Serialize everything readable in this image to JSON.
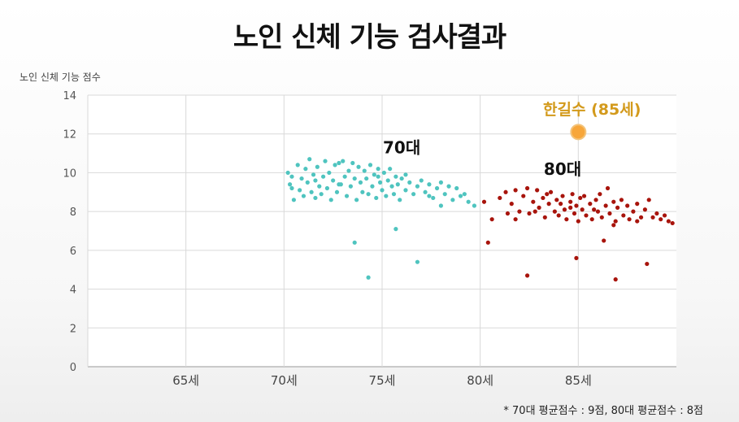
{
  "title": "노인 신체 기능 검사결과",
  "footnote": "* 70대 평균점수 : 9점,  80대 평균점수 : 8점",
  "chart_data": {
    "type": "scatter",
    "ylabel": "노인 신체 기능 점수",
    "ylim": [
      0,
      14
    ],
    "yticks": [
      "0",
      "2",
      "4",
      "6",
      "8",
      "10",
      "12",
      "14"
    ],
    "xlim": [
      60,
      90
    ],
    "xticks": [
      {
        "x": 65,
        "label": "65세"
      },
      {
        "x": 70,
        "label": "70세"
      },
      {
        "x": 75,
        "label": "75세"
      },
      {
        "x": 80,
        "label": "80세"
      },
      {
        "x": 85,
        "label": "85세"
      }
    ],
    "grid": true,
    "colors": {
      "group70": "#4fc4bf",
      "group80": "#a8140c",
      "highlight": "#f7a63a",
      "highlight_text": "#d39a1c"
    },
    "annotations": [
      {
        "text": "70대",
        "x": 76,
        "y": 11.0
      },
      {
        "text": "80대",
        "x": 84.2,
        "y": 9.9
      },
      {
        "text": "한길수 (85세)",
        "x": 85.7,
        "y": 13.0
      }
    ],
    "highlight": {
      "name": "한길수 (85세)",
      "x": 85,
      "y": 12.1
    },
    "series": [
      {
        "name": "70대",
        "points": [
          [
            70.2,
            10.0
          ],
          [
            70.3,
            9.4
          ],
          [
            70.4,
            9.8
          ],
          [
            70.5,
            8.6
          ],
          [
            70.7,
            10.4
          ],
          [
            70.8,
            9.1
          ],
          [
            70.9,
            9.7
          ],
          [
            71.0,
            8.8
          ],
          [
            71.1,
            10.2
          ],
          [
            71.2,
            9.5
          ],
          [
            71.3,
            10.7
          ],
          [
            71.4,
            9.0
          ],
          [
            71.5,
            9.9
          ],
          [
            71.6,
            8.7
          ],
          [
            71.7,
            10.3
          ],
          [
            71.8,
            9.3
          ],
          [
            71.9,
            8.9
          ],
          [
            72.0,
            9.8
          ],
          [
            72.1,
            10.6
          ],
          [
            72.2,
            9.2
          ],
          [
            72.3,
            10.0
          ],
          [
            72.4,
            8.6
          ],
          [
            72.5,
            9.6
          ],
          [
            72.6,
            10.4
          ],
          [
            72.7,
            9.0
          ],
          [
            72.8,
            10.5
          ],
          [
            72.9,
            9.4
          ],
          [
            73.0,
            10.6
          ],
          [
            73.1,
            9.8
          ],
          [
            73.2,
            8.8
          ],
          [
            73.3,
            10.1
          ],
          [
            73.4,
            9.3
          ],
          [
            73.5,
            10.5
          ],
          [
            73.6,
            9.7
          ],
          [
            73.7,
            8.6
          ],
          [
            73.8,
            10.3
          ],
          [
            73.9,
            9.5
          ],
          [
            74.0,
            9.0
          ],
          [
            74.1,
            10.1
          ],
          [
            74.2,
            9.7
          ],
          [
            74.3,
            8.9
          ],
          [
            74.4,
            10.4
          ],
          [
            74.5,
            9.3
          ],
          [
            74.6,
            9.9
          ],
          [
            74.7,
            8.7
          ],
          [
            74.8,
            10.2
          ],
          [
            74.9,
            9.5
          ],
          [
            75.0,
            9.1
          ],
          [
            75.1,
            10.0
          ],
          [
            75.2,
            8.8
          ],
          [
            75.3,
            9.6
          ],
          [
            75.4,
            10.2
          ],
          [
            75.5,
            9.3
          ],
          [
            75.6,
            8.9
          ],
          [
            75.7,
            9.8
          ],
          [
            75.8,
            9.4
          ],
          [
            75.9,
            8.6
          ],
          [
            76.0,
            9.7
          ],
          [
            76.2,
            9.1
          ],
          [
            76.4,
            9.5
          ],
          [
            76.6,
            8.9
          ],
          [
            76.8,
            9.3
          ],
          [
            77.0,
            9.6
          ],
          [
            77.2,
            9.0
          ],
          [
            77.4,
            9.4
          ],
          [
            77.6,
            8.7
          ],
          [
            77.8,
            9.2
          ],
          [
            78.0,
            9.5
          ],
          [
            78.2,
            8.9
          ],
          [
            78.4,
            9.3
          ],
          [
            78.6,
            8.6
          ],
          [
            78.8,
            9.2
          ],
          [
            79.0,
            8.8
          ],
          [
            79.2,
            8.9
          ],
          [
            79.4,
            8.5
          ],
          [
            79.7,
            8.3
          ],
          [
            70.4,
            9.2
          ],
          [
            71.6,
            9.6
          ],
          [
            72.8,
            9.4
          ],
          [
            74.8,
            9.8
          ],
          [
            76.2,
            9.9
          ],
          [
            77.4,
            8.8
          ],
          [
            78.0,
            8.3
          ],
          [
            73.6,
            6.4
          ],
          [
            74.3,
            4.6
          ],
          [
            75.7,
            7.1
          ],
          [
            76.8,
            5.4
          ]
        ]
      },
      {
        "name": "80대",
        "points": [
          [
            80.2,
            8.5
          ],
          [
            80.6,
            7.6
          ],
          [
            81.0,
            8.7
          ],
          [
            81.3,
            9.0
          ],
          [
            81.6,
            8.4
          ],
          [
            81.8,
            9.1
          ],
          [
            82.0,
            8.0
          ],
          [
            82.2,
            8.8
          ],
          [
            82.4,
            9.2
          ],
          [
            82.5,
            7.9
          ],
          [
            82.7,
            8.5
          ],
          [
            82.9,
            9.1
          ],
          [
            83.0,
            8.2
          ],
          [
            83.2,
            8.7
          ],
          [
            83.3,
            7.7
          ],
          [
            83.5,
            8.4
          ],
          [
            83.6,
            9.0
          ],
          [
            83.8,
            8.0
          ],
          [
            83.9,
            8.6
          ],
          [
            84.0,
            7.8
          ],
          [
            84.2,
            8.8
          ],
          [
            84.3,
            8.1
          ],
          [
            84.4,
            7.6
          ],
          [
            84.6,
            8.5
          ],
          [
            84.7,
            8.9
          ],
          [
            84.8,
            7.9
          ],
          [
            84.9,
            8.3
          ],
          [
            85.0,
            7.5
          ],
          [
            85.1,
            8.7
          ],
          [
            85.2,
            8.1
          ],
          [
            85.3,
            8.8
          ],
          [
            85.4,
            7.8
          ],
          [
            85.6,
            8.4
          ],
          [
            85.7,
            7.6
          ],
          [
            85.9,
            8.6
          ],
          [
            86.0,
            8.0
          ],
          [
            86.1,
            8.9
          ],
          [
            86.2,
            7.7
          ],
          [
            86.4,
            8.3
          ],
          [
            86.5,
            9.2
          ],
          [
            86.6,
            7.9
          ],
          [
            86.8,
            8.5
          ],
          [
            86.9,
            7.5
          ],
          [
            87.0,
            8.2
          ],
          [
            87.2,
            8.6
          ],
          [
            87.3,
            7.8
          ],
          [
            87.5,
            8.3
          ],
          [
            87.6,
            7.6
          ],
          [
            87.8,
            8.0
          ],
          [
            88.0,
            8.4
          ],
          [
            88.2,
            7.7
          ],
          [
            88.4,
            8.1
          ],
          [
            88.6,
            8.6
          ],
          [
            88.8,
            7.7
          ],
          [
            89.0,
            7.9
          ],
          [
            89.2,
            7.6
          ],
          [
            89.4,
            7.8
          ],
          [
            89.6,
            7.5
          ],
          [
            89.8,
            7.4
          ],
          [
            81.8,
            7.6
          ],
          [
            83.4,
            8.9
          ],
          [
            84.6,
            8.2
          ],
          [
            85.8,
            8.1
          ],
          [
            86.8,
            7.3
          ],
          [
            88.0,
            7.5
          ],
          [
            82.8,
            8.0
          ],
          [
            81.4,
            7.9
          ],
          [
            84.1,
            8.4
          ],
          [
            80.4,
            6.4
          ],
          [
            82.4,
            4.7
          ],
          [
            84.9,
            5.6
          ],
          [
            86.3,
            6.5
          ],
          [
            86.9,
            4.5
          ],
          [
            88.5,
            5.3
          ]
        ]
      }
    ]
  }
}
